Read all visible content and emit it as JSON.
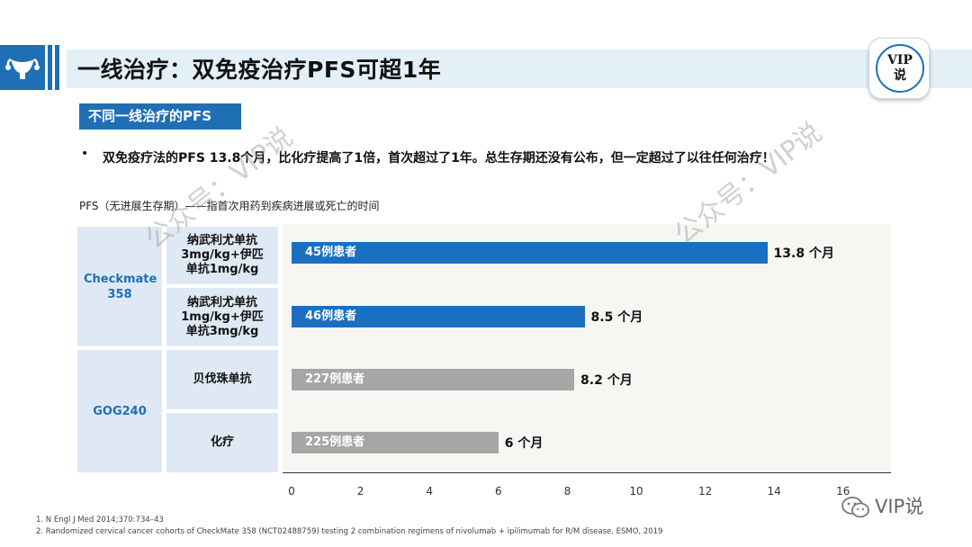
{
  "header": {
    "title": "一线治疗：双免疫治疗PFS可超1年",
    "badge_line1": "VIP",
    "badge_line2": "说"
  },
  "subtitle": "不同一线治疗的PFS",
  "bullet": "双免疫疗法的PFS 13.8个月，比化疗提高了1倍，首次超过了1年。总生存期还没有公布，但一定超过了以往任何治疗！",
  "pfs_definition": "PFS（无进展生存期）——指首次用药到疾病进展或死亡的时间",
  "table": {
    "trials": [
      "Checkmate 358",
      "GOG240"
    ],
    "regimens": [
      "纳武利尤单抗3mg/kg+伊匹单抗1mg/kg",
      "纳武利尤单抗1mg/kg+伊匹单抗3mg/kg",
      "贝伐珠单抗",
      "化疗"
    ]
  },
  "chart_data": {
    "type": "bar",
    "orientation": "horizontal",
    "categories": [
      "纳武利尤单抗3mg/kg+伊匹单抗1mg/kg",
      "纳武利尤单抗1mg/kg+伊匹单抗3mg/kg",
      "贝伐珠单抗",
      "化疗"
    ],
    "values": [
      13.8,
      8.5,
      8.2,
      6
    ],
    "value_labels": [
      "13.8 个月",
      "8.5 个月",
      "8.2 个月",
      "6 个月"
    ],
    "bar_labels": [
      "45例患者",
      "46例患者",
      "227例患者",
      "225例患者"
    ],
    "bar_colors": [
      "#1a6fc0",
      "#1a6fc0",
      "#a6a6a6",
      "#a6a6a6"
    ],
    "xlim": [
      0,
      16
    ],
    "xticks": [
      "0",
      "2",
      "4",
      "6",
      "8",
      "10",
      "12",
      "14",
      "16"
    ],
    "grid": false
  },
  "watermark": "公众号：VIP说",
  "wechat_label": "VIP说",
  "footnotes": [
    "1. N Engl J Med 2014;370:734–43",
    "2. Randomized cervical cancer cohorts of CheckMate 358 (NCT02488759) testing 2 combination regimens of nivolumab + ipilimumab for R/M disease. ESMO, 2019"
  ]
}
